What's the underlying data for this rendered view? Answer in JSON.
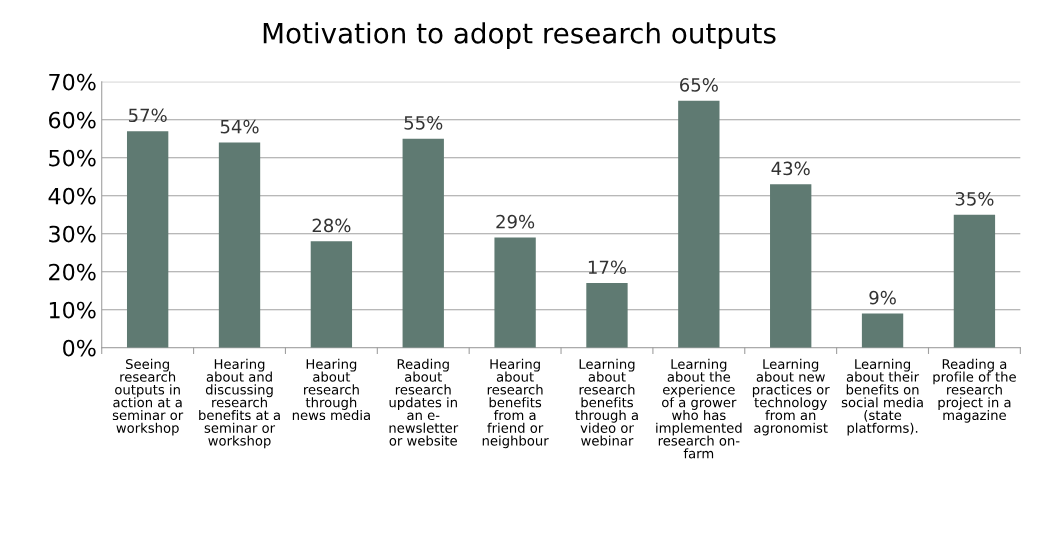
{
  "chart_data": {
    "type": "bar",
    "title": "Motivation to adopt research outputs",
    "categories": [
      "Seeing\nresearch\noutputs in\naction at a\nseminar or\nworkshop",
      "Hearing\nabout and\ndiscussing\nresearch\nbenefits at a\nseminar or\nworkshop",
      "Hearing\nabout\nresearch\nthrough\nnews media",
      "Reading\nabout\nresearch\nupdates in\nan e-\nnewsletter\nor website",
      "Hearing\nabout\nresearch\nbenefits\nfrom a\nfriend or\nneighbour",
      "Learning\nabout\nresearch\nbenefits\nthrough a\nvideo or\nwebinar",
      "Learning\nabout the\nexperience\nof a grower\nwho has\nimplemented\nresearch on-\nfarm",
      "Learning\nabout new\npractices or\ntechnology\nfrom an\nagronomist",
      "Learning\nabout their\nbenefits on\nsocial media\n(state\nplatforms).",
      "Reading a\nprofile of the\nresearch\nproject in a\nmagazine"
    ],
    "values": [
      57,
      54,
      28,
      55,
      29,
      17,
      65,
      43,
      9,
      35
    ],
    "value_labels": [
      "57%",
      "54%",
      "28%",
      "55%",
      "29%",
      "17%",
      "65%",
      "43%",
      "9%",
      "35%"
    ],
    "color": "#5f7a72",
    "ylim": [
      0,
      70
    ],
    "yticks": [
      {
        "value": 0,
        "label": "0%"
      },
      {
        "value": 10,
        "label": "10%"
      },
      {
        "value": 20,
        "label": "20%"
      },
      {
        "value": 30,
        "label": "30%"
      },
      {
        "value": 40,
        "label": "40%"
      },
      {
        "value": 50,
        "label": "50%"
      },
      {
        "value": 60,
        "label": "60%"
      },
      {
        "value": 70,
        "label": "70%"
      }
    ],
    "grid": "y"
  }
}
